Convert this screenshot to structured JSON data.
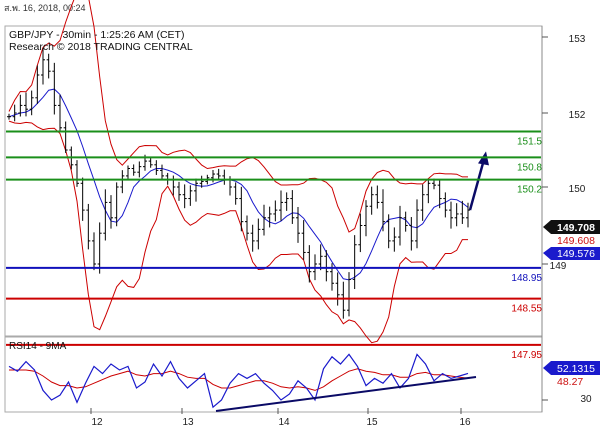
{
  "header": {
    "date_line": "ส.พ. 16, 2018, 00:24",
    "title": "GBP/JPY - 30min - 1:25:26 AM (CET)",
    "source": "Research © 2018 TRADING CENTRAL"
  },
  "colors": {
    "background": "#ffffff",
    "price": "#000000",
    "bollinger": "#cc0000",
    "moving_average": "#1a1acc",
    "resistance": "#1a8f1a",
    "pivot": "#1010bb",
    "support": "#cc0000",
    "arrow": "#0a0a66",
    "label_current": "#000000",
    "label_red": "#cc1111",
    "label_blue": "#1a1acc"
  },
  "chart_data": [
    {
      "type": "line",
      "name": "price-panel",
      "title": "GBP/JPY - 30min - 1:25:26 AM (CET)",
      "ylim": [
        147.65,
        153.15
      ],
      "y_ticks": [
        153,
        152,
        150,
        149
      ],
      "x_ticks": [
        "12",
        "13",
        "14",
        "15",
        "16"
      ],
      "price": [
        151.9,
        152.0,
        152.1,
        152.05,
        152.2,
        152.5,
        152.7,
        152.55,
        152.1,
        151.6,
        151.0,
        150.6,
        150.1,
        149.7,
        149.3,
        149.0,
        149.4,
        149.8,
        149.6,
        150.0,
        150.3,
        150.5,
        150.4,
        150.55,
        150.7,
        150.6,
        150.45,
        150.3,
        150.2,
        150.0,
        149.9,
        149.85,
        149.95,
        150.1,
        150.15,
        150.25,
        150.35,
        150.3,
        150.2,
        150.0,
        149.85,
        149.55,
        149.4,
        149.3,
        149.45,
        149.6,
        149.65,
        149.7,
        149.8,
        149.85,
        149.6,
        149.4,
        149.15,
        148.9,
        149.0,
        149.1,
        148.9,
        148.75,
        148.6,
        148.4,
        148.8,
        149.25,
        149.5,
        149.75,
        149.9,
        149.8,
        149.55,
        149.3,
        149.35,
        149.6,
        149.5,
        149.3,
        149.7,
        149.9,
        150.1,
        150.05,
        149.85,
        149.7,
        149.6,
        149.65,
        149.6,
        149.7
      ],
      "annotations": [
        {
          "label": "arrow-up-target",
          "from_price": 149.7,
          "to_price": 150.8
        }
      ]
    },
    {
      "type": "line",
      "name": "rsi-panel",
      "title": "RSI14 - 9MA",
      "ylim": [
        20,
        80
      ],
      "y_ticks": [
        30
      ],
      "rsi": [
        58,
        54,
        62,
        55,
        38,
        30,
        34,
        45,
        28,
        44,
        58,
        52,
        60,
        55,
        58,
        40,
        45,
        60,
        50,
        62,
        48,
        40,
        46,
        52,
        24,
        30,
        44,
        52,
        48,
        52,
        44,
        38,
        30,
        35,
        46,
        40,
        30,
        56,
        66,
        60,
        68,
        58,
        42,
        48,
        44,
        52,
        40,
        48,
        68,
        60,
        46,
        52,
        48,
        50,
        52.1315
      ],
      "rsi_ma": [
        55,
        55,
        55,
        54,
        50,
        45,
        42,
        42,
        40,
        41,
        44,
        47,
        50,
        52,
        54,
        51,
        50,
        52,
        52,
        54,
        52,
        49,
        48,
        48,
        43,
        40,
        40,
        42,
        44,
        46,
        46,
        44,
        41,
        40,
        41,
        40,
        38,
        41,
        46,
        50,
        54,
        56,
        54,
        53,
        51,
        51,
        49,
        49,
        52,
        53,
        51,
        51,
        50,
        49,
        48.27
      ],
      "trendline": {
        "from": 22,
        "to": 47
      }
    }
  ],
  "price_levels": [
    {
      "value": 151.5,
      "label": "151.5",
      "kind": "resistance"
    },
    {
      "value": 150.8,
      "label": "150.8",
      "kind": "resistance"
    },
    {
      "value": 150.2,
      "label": "150.2",
      "kind": "resistance"
    },
    {
      "value": 148.95,
      "label": "148.95",
      "kind": "pivot"
    },
    {
      "value": 148.55,
      "label": "148.55",
      "kind": "support"
    },
    {
      "value": 147.95,
      "label": "147.95",
      "kind": "support"
    }
  ],
  "price_axis": {
    "ticks": [
      "153",
      "152",
      "150",
      "149"
    ],
    "current_label": "149.708",
    "label_red": "149.608",
    "label_blue": "149.576"
  },
  "rsi_axis": {
    "ticks": [
      "30"
    ],
    "rsi_label": "52.1315",
    "ma_label": "48.27"
  },
  "time_axis": {
    "ticks": [
      "12",
      "13",
      "14",
      "15",
      "16"
    ]
  }
}
